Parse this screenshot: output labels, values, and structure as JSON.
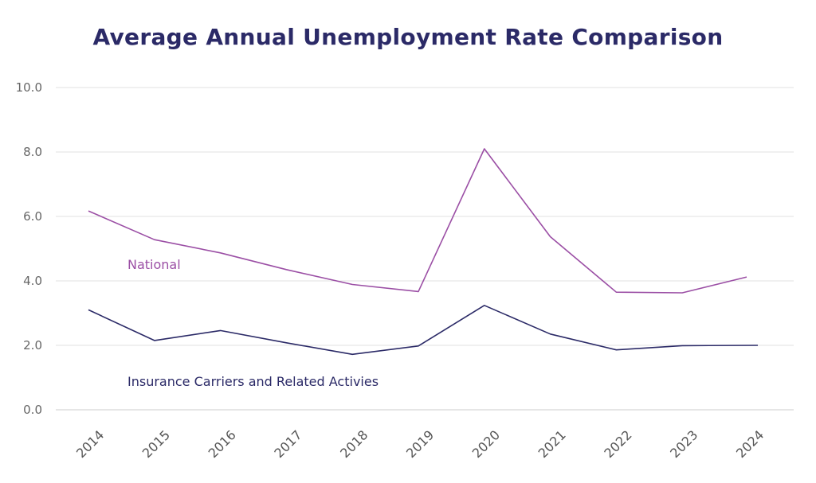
{
  "chart_data": {
    "type": "line",
    "title": "Average Annual Unemployment Rate Comparison",
    "x": [
      "2014",
      "2015",
      "2016",
      "2017",
      "2018",
      "2019",
      "2020",
      "2021",
      "2022",
      "2023",
      "2024"
    ],
    "y_ticks": [
      "0.0",
      "2.0",
      "4.0",
      "6.0",
      "8.0",
      "10.0"
    ],
    "ylim": [
      0,
      10
    ],
    "grid": true,
    "series": [
      {
        "name": "National",
        "color": "#9b4fa5",
        "values": [
          6.17,
          5.28,
          4.87,
          4.35,
          3.89,
          3.67,
          8.1,
          5.37,
          3.65,
          3.63,
          4.12
        ]
      },
      {
        "name": "Insurance Carriers and Related Activies",
        "color": "#2b2a67",
        "values": [
          3.1,
          2.15,
          2.46,
          2.08,
          1.72,
          1.98,
          3.24,
          2.35,
          1.86,
          1.99,
          2.0
        ]
      }
    ]
  }
}
